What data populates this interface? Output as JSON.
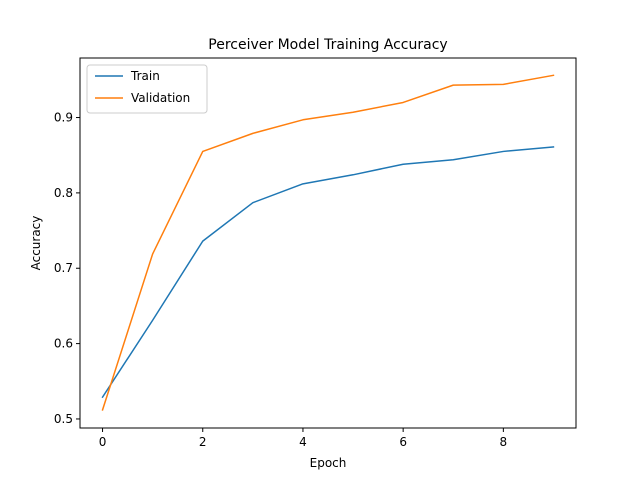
{
  "chart_data": {
    "type": "line",
    "title": "Perceiver Model Training Accuracy",
    "xlabel": "Epoch",
    "ylabel": "Accuracy",
    "x": [
      0,
      1,
      2,
      3,
      4,
      5,
      6,
      7,
      8,
      9
    ],
    "xlim": [
      -0.45,
      9.45
    ],
    "ylim": [
      0.488,
      0.979
    ],
    "xticks": [
      0,
      2,
      4,
      6,
      8
    ],
    "yticks": [
      0.5,
      0.6,
      0.7,
      0.8,
      0.9
    ],
    "xtick_labels": [
      "0",
      "2",
      "4",
      "6",
      "8"
    ],
    "ytick_labels": [
      "0.5",
      "0.6",
      "0.7",
      "0.8",
      "0.9"
    ],
    "grid": false,
    "legend": "top-left",
    "series": [
      {
        "name": "Train",
        "color": "#1f77b4",
        "values": [
          0.529,
          0.631,
          0.736,
          0.787,
          0.812,
          0.824,
          0.838,
          0.844,
          0.855,
          0.861
        ]
      },
      {
        "name": "Validation",
        "color": "#ff7f0e",
        "values": [
          0.512,
          0.719,
          0.855,
          0.879,
          0.897,
          0.907,
          0.92,
          0.943,
          0.944,
          0.956
        ]
      }
    ]
  }
}
